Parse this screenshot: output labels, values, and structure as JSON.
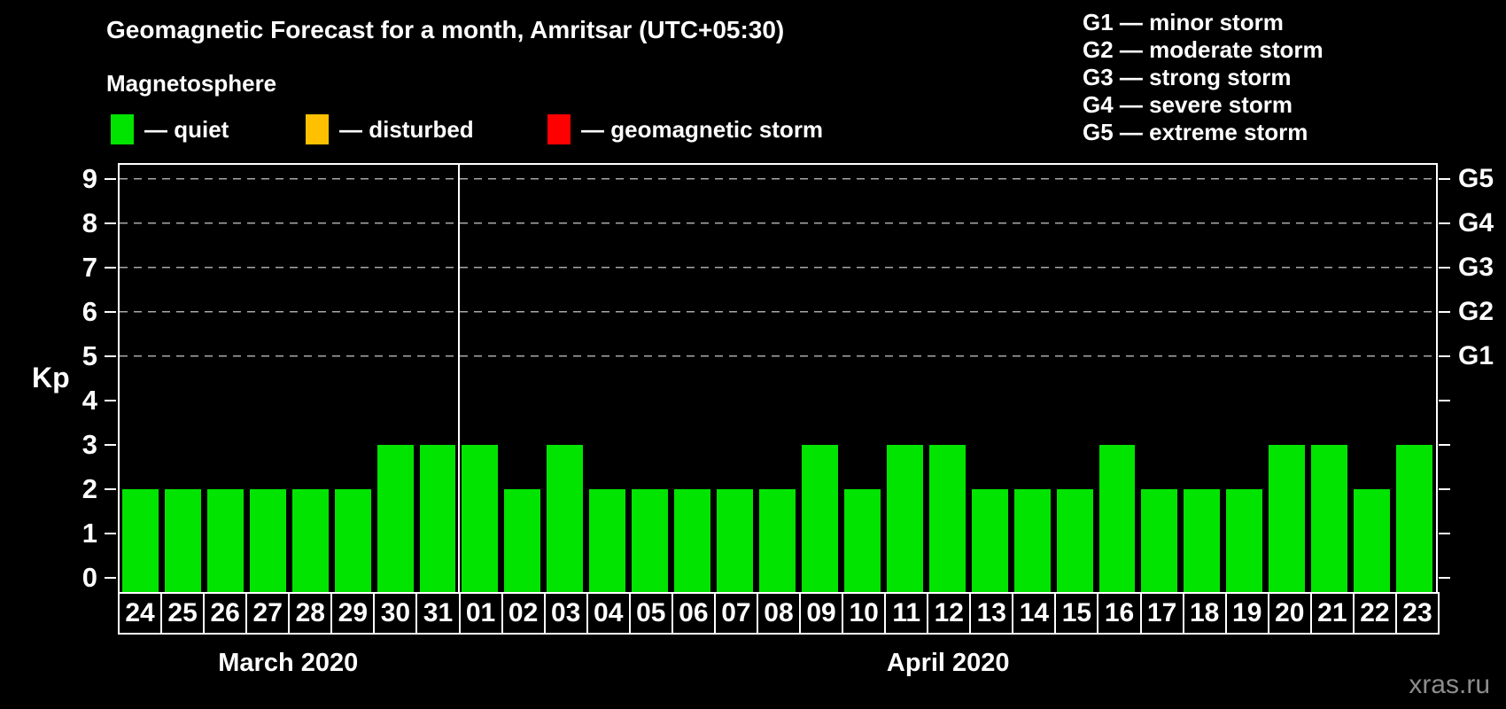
{
  "header": {
    "title": "Geomagnetic Forecast for a month, Amritsar (UTC+05:30)",
    "subtitle": "Magnetosphere",
    "separator": "—",
    "legend": [
      {
        "label": "quiet",
        "color": "#00e400"
      },
      {
        "label": "disturbed",
        "color": "#ffc000"
      },
      {
        "label": "geomagnetic storm",
        "color": "#ff0000"
      }
    ],
    "g_scale": [
      {
        "code": "G1",
        "label": "minor storm"
      },
      {
        "code": "G2",
        "label": "moderate storm"
      },
      {
        "code": "G3",
        "label": "strong storm"
      },
      {
        "code": "G4",
        "label": "severe storm"
      },
      {
        "code": "G5",
        "label": "extreme storm"
      }
    ]
  },
  "watermark": "xras.ru",
  "chart_data": {
    "type": "bar",
    "title": "Geomagnetic Forecast for a month, Amritsar (UTC+05:30)",
    "ylabel": "Kp",
    "ylim": [
      0,
      9
    ],
    "yticks": [
      0,
      1,
      2,
      3,
      4,
      5,
      6,
      7,
      8,
      9
    ],
    "gridlines_at": [
      5,
      6,
      7,
      8,
      9
    ],
    "grid": "dashed horizontal lines at storm thresholds Kp 5-9",
    "legend_position": "top",
    "right_axis": [
      {
        "kp": 5,
        "label": "G1"
      },
      {
        "kp": 6,
        "label": "G2"
      },
      {
        "kp": 7,
        "label": "G3"
      },
      {
        "kp": 8,
        "label": "G4"
      },
      {
        "kp": 9,
        "label": "G5"
      }
    ],
    "bar_color": "#00e400",
    "bar_status": "quiet",
    "months": [
      {
        "label": "March 2020",
        "days": [
          "24",
          "25",
          "26",
          "27",
          "28",
          "29",
          "30",
          "31"
        ],
        "values": [
          2,
          2,
          2,
          2,
          2,
          2,
          3,
          3
        ]
      },
      {
        "label": "April 2020",
        "days": [
          "01",
          "02",
          "03",
          "04",
          "05",
          "06",
          "07",
          "08",
          "09",
          "10",
          "11",
          "12",
          "13",
          "14",
          "15",
          "16",
          "17",
          "18",
          "19",
          "20",
          "21",
          "22",
          "23"
        ],
        "values": [
          3,
          2,
          3,
          2,
          2,
          2,
          2,
          2,
          3,
          2,
          3,
          3,
          2,
          2,
          2,
          3,
          2,
          2,
          2,
          3,
          3,
          2,
          3
        ]
      }
    ]
  }
}
